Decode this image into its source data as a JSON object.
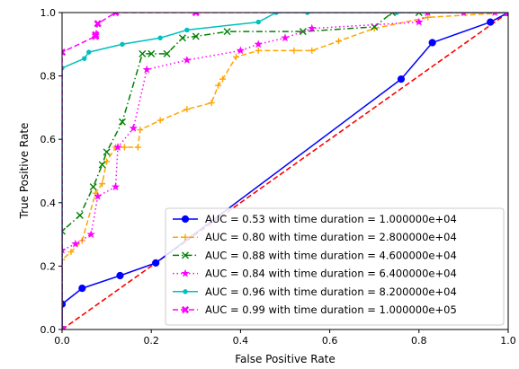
{
  "chart_data": {
    "type": "line",
    "xlabel": "False Positive Rate",
    "ylabel": "True Positive Rate",
    "xlim": [
      0.0,
      1.0
    ],
    "ylim": [
      0.0,
      1.0
    ],
    "x_ticks": [
      "0.0",
      "0.2",
      "0.4",
      "0.6",
      "0.8",
      "1.0"
    ],
    "y_ticks": [
      "0.0",
      "0.2",
      "0.4",
      "0.6",
      "0.8",
      "1.0"
    ],
    "grid": false,
    "legend_position": "lower-right",
    "diagonal": {
      "x": [
        0.0,
        1.0
      ],
      "y": [
        0.0,
        1.0
      ],
      "color": "#ff0000",
      "style": "dashed"
    },
    "series": [
      {
        "name": "AUC = 0.53 with time duration = 1.000000e+04",
        "color": "#0000ff",
        "style": "solid",
        "marker": "circle",
        "x": [
          0.0,
          0.0,
          0.045,
          0.13,
          0.21,
          0.76,
          0.83,
          0.96,
          1.0
        ],
        "y": [
          0.0,
          0.08,
          0.13,
          0.17,
          0.21,
          0.79,
          0.905,
          0.97,
          1.0
        ]
      },
      {
        "name": "AUC = 0.80 with time duration = 2.800000e+04",
        "color": "#ffa500",
        "style": "dashed",
        "marker": "plus",
        "x": [
          0.0,
          0.0,
          0.02,
          0.045,
          0.075,
          0.09,
          0.1,
          0.12,
          0.14,
          0.17,
          0.175,
          0.22,
          0.28,
          0.335,
          0.35,
          0.36,
          0.39,
          0.44,
          0.52,
          0.56,
          0.62,
          0.7,
          0.82,
          1.0
        ],
        "y": [
          0.0,
          0.22,
          0.245,
          0.28,
          0.43,
          0.46,
          0.53,
          0.575,
          0.575,
          0.575,
          0.63,
          0.66,
          0.695,
          0.715,
          0.77,
          0.79,
          0.86,
          0.88,
          0.88,
          0.88,
          0.91,
          0.95,
          0.985,
          1.0
        ]
      },
      {
        "name": "AUC = 0.88 with time duration = 4.600000e+04",
        "color": "#008000",
        "style": "dashdot",
        "marker": "x",
        "x": [
          0.0,
          0.0,
          0.04,
          0.07,
          0.09,
          0.1,
          0.135,
          0.18,
          0.2,
          0.235,
          0.27,
          0.3,
          0.37,
          0.54,
          0.7,
          0.74,
          0.8,
          1.0
        ],
        "y": [
          0.0,
          0.31,
          0.36,
          0.45,
          0.52,
          0.56,
          0.655,
          0.87,
          0.87,
          0.87,
          0.92,
          0.925,
          0.94,
          0.94,
          0.955,
          1.0,
          1.0,
          1.0
        ]
      },
      {
        "name": "AUC = 0.84 with time duration = 6.400000e+04",
        "color": "#ff00ff",
        "style": "dotted",
        "marker": "star",
        "x": [
          0.0,
          0.0,
          0.03,
          0.065,
          0.08,
          0.12,
          0.125,
          0.16,
          0.19,
          0.28,
          0.4,
          0.44,
          0.5,
          0.56,
          0.8,
          0.82,
          0.9,
          0.97,
          1.0
        ],
        "y": [
          0.0,
          0.25,
          0.27,
          0.3,
          0.42,
          0.45,
          0.575,
          0.635,
          0.82,
          0.85,
          0.88,
          0.9,
          0.92,
          0.95,
          0.97,
          1.0,
          1.0,
          1.0,
          1.0
        ]
      },
      {
        "name": "AUC = 0.96 with time duration = 8.200000e+04",
        "color": "#00bfbf",
        "style": "solid",
        "marker": "dot",
        "x": [
          0.0,
          0.0,
          0.05,
          0.06,
          0.135,
          0.22,
          0.28,
          0.44,
          0.48,
          0.55,
          0.75,
          1.0
        ],
        "y": [
          0.0,
          0.825,
          0.855,
          0.875,
          0.9,
          0.92,
          0.945,
          0.97,
          1.0,
          1.0,
          1.0,
          1.0
        ]
      },
      {
        "name": "AUC = 0.99 with time duration = 1.000000e+05",
        "color": "#ff00ff",
        "style": "dashed",
        "marker": "x-bold",
        "x": [
          0.0,
          0.0,
          0.075,
          0.075,
          0.08,
          0.12,
          0.3,
          1.0
        ],
        "y": [
          0.0,
          0.875,
          0.925,
          0.93,
          0.965,
          1.0,
          1.0,
          1.0
        ]
      }
    ]
  }
}
